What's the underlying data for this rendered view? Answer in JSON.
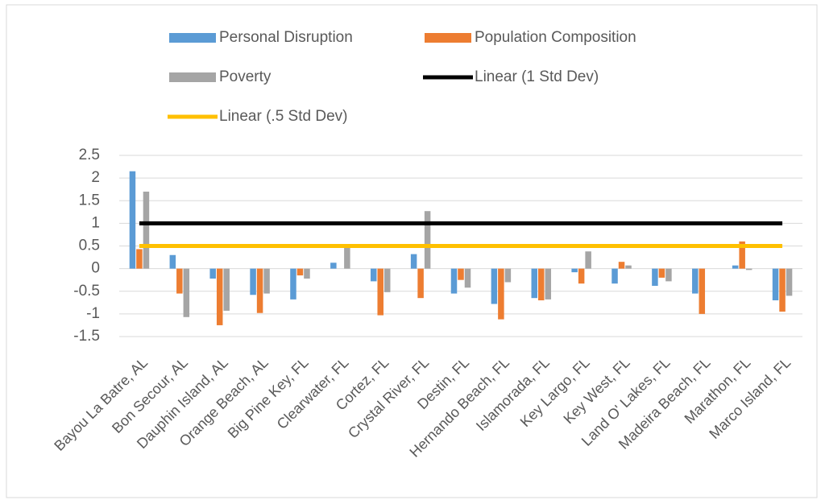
{
  "chart_data": {
    "type": "bar",
    "categories": [
      "Bayou La Batre, AL",
      "Bon Secour, AL",
      "Dauphin Island, AL",
      "Orange Beach, AL",
      "Big Pine Key, FL",
      "Clearwater, FL",
      "Cortez, FL",
      "Crystal River, FL",
      "Destin, FL",
      "Hernando Beach, FL",
      "Islamorada, FL",
      "Key Largo, FL",
      "Key West, FL",
      "Land O' Lakes, FL",
      "Madeira Beach, FL",
      "Marathon, FL",
      "Marco Island, FL"
    ],
    "series": [
      {
        "name": "Personal Disruption",
        "color": "#5b9bd5",
        "type": "bar",
        "values": [
          2.15,
          0.3,
          -0.22,
          -0.58,
          -0.68,
          0.13,
          -0.28,
          0.32,
          -0.55,
          -0.78,
          -0.65,
          -0.08,
          -0.33,
          -0.38,
          -0.55,
          0.07,
          -0.7
        ]
      },
      {
        "name": "Population Composition",
        "color": "#ed7d31",
        "type": "bar",
        "values": [
          0.43,
          -0.55,
          -1.25,
          -0.98,
          -0.15,
          0,
          -1.03,
          -0.65,
          -0.25,
          -1.12,
          -0.7,
          -0.33,
          0.15,
          -0.2,
          -1.0,
          0.6,
          -0.95
        ]
      },
      {
        "name": "Poverty",
        "color": "#a5a5a5",
        "type": "bar",
        "values": [
          1.7,
          -1.07,
          -0.93,
          -0.55,
          -0.22,
          0.5,
          -0.52,
          1.27,
          -0.42,
          -0.3,
          -0.68,
          0.38,
          0.07,
          -0.28,
          0,
          -0.03,
          -0.6
        ]
      },
      {
        "name": "Linear (1 Std Dev)",
        "color": "#000000",
        "type": "line",
        "values": [
          1,
          1,
          1,
          1,
          1,
          1,
          1,
          1,
          1,
          1,
          1,
          1,
          1,
          1,
          1,
          1,
          1
        ]
      },
      {
        "name": "Linear (.5 Std Dev)",
        "color": "#ffc000",
        "type": "line",
        "values": [
          0.5,
          0.5,
          0.5,
          0.5,
          0.5,
          0.5,
          0.5,
          0.5,
          0.5,
          0.5,
          0.5,
          0.5,
          0.5,
          0.5,
          0.5,
          0.5,
          0.5
        ]
      }
    ],
    "ylim": [
      -1.5,
      2.5
    ],
    "yticks": [
      -1.5,
      -1,
      -0.5,
      0,
      0.5,
      1,
      1.5,
      2,
      2.5
    ],
    "grid": true,
    "legend": "top"
  }
}
